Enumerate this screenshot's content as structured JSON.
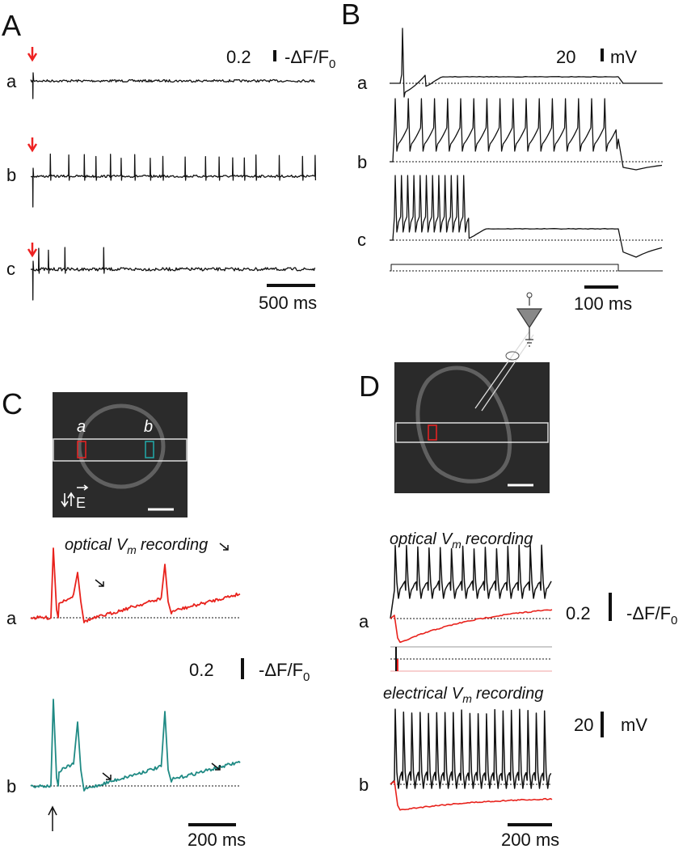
{
  "panels": {
    "A": {
      "label": "A",
      "traces": [
        "a",
        "b",
        "c"
      ],
      "scale": {
        "value": "0.2",
        "unit": "-ΔF/F",
        "unit_sub": "0"
      },
      "time_scale": "500 ms"
    },
    "B": {
      "label": "B",
      "traces": [
        "a",
        "b",
        "c"
      ],
      "scale": {
        "value": "20",
        "unit": "mV"
      },
      "time_scale": "100 ms"
    },
    "C": {
      "label": "C",
      "image_labels": [
        "a",
        "b"
      ],
      "field": "E",
      "caption": {
        "text": "optical",
        "symbol": "V",
        "sub": "m",
        "rest": "recording"
      },
      "traces": [
        "a",
        "b"
      ],
      "scale": {
        "value": "0.2",
        "unit": "-ΔF/F",
        "unit_sub": "0"
      },
      "time_scale": "200 ms"
    },
    "D": {
      "label": "D",
      "optical_caption": {
        "text": "optical",
        "symbol": "V",
        "sub": "m",
        "rest": "recording"
      },
      "electrical_caption": {
        "text": "electrical",
        "symbol": "V",
        "sub": "m",
        "rest": "recording"
      },
      "traces": [
        "a",
        "b"
      ],
      "optical_scale": {
        "value": "0.2",
        "unit": "-ΔF/F",
        "unit_sub": "0"
      },
      "electrical_scale": {
        "value": "20",
        "unit": "mV"
      },
      "time_scale": "200 ms"
    }
  }
}
